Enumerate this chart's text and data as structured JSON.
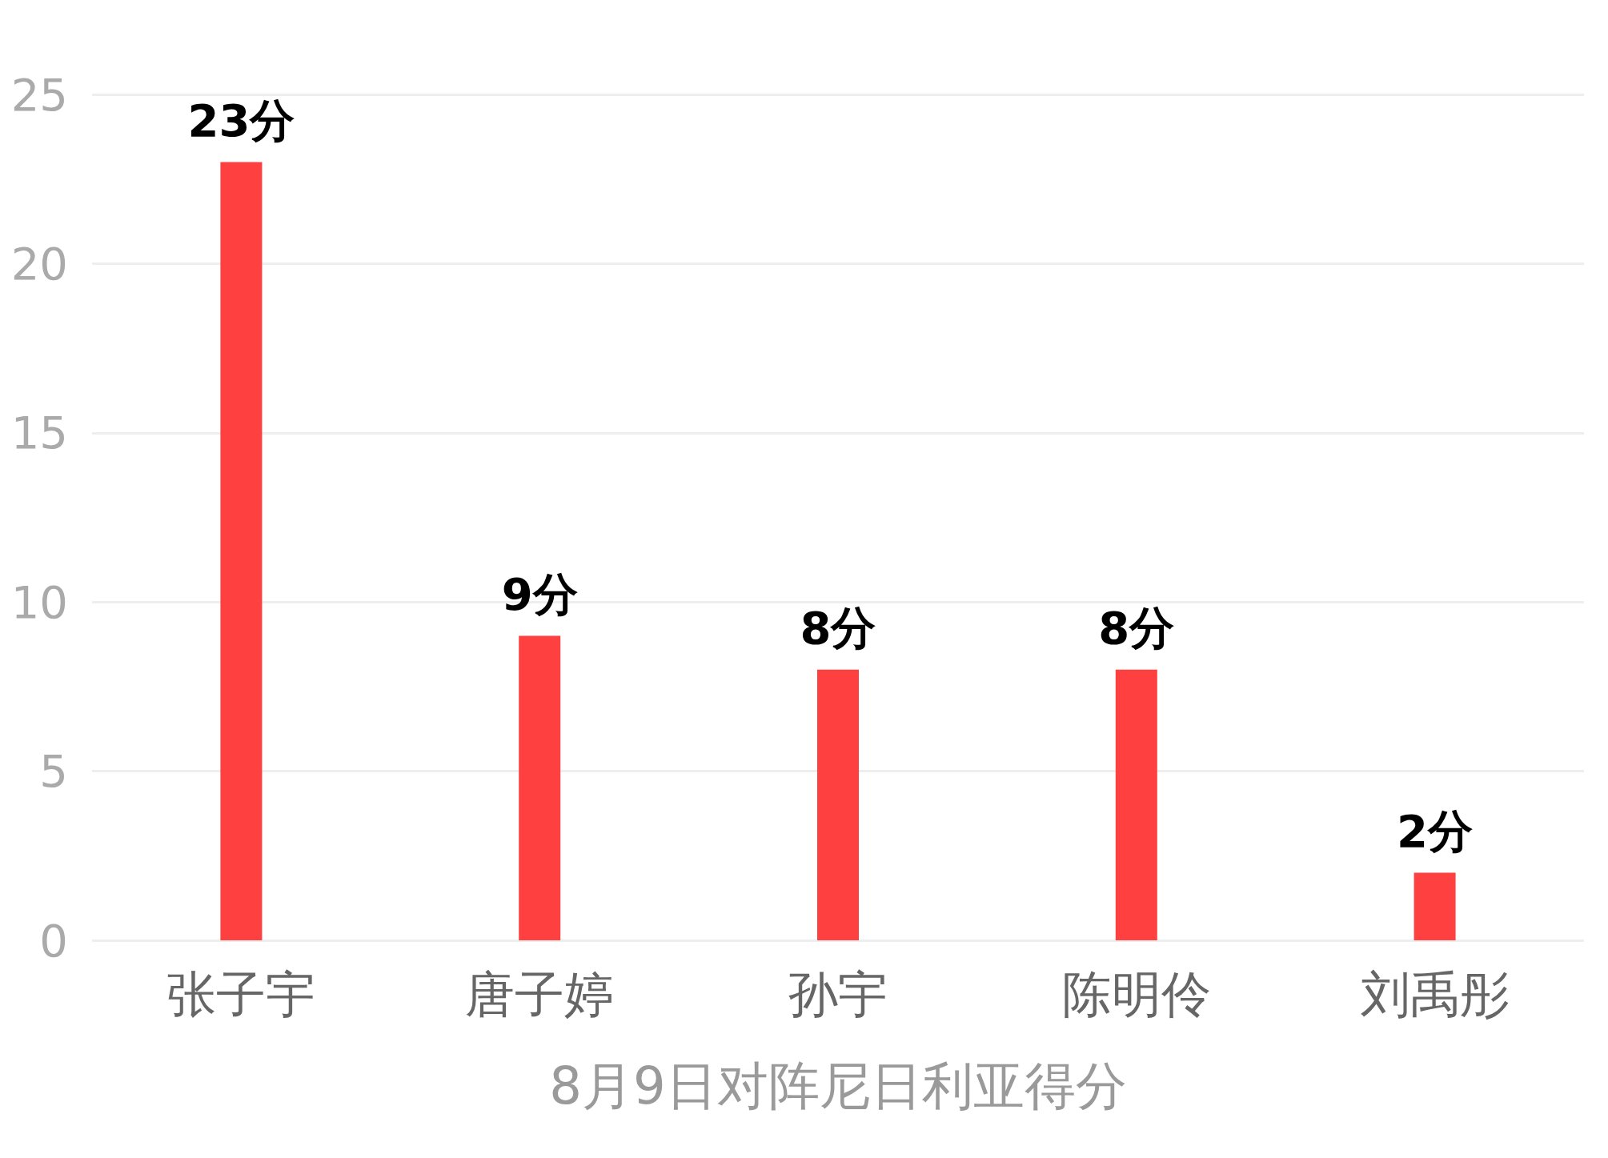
{
  "chart_data": {
    "type": "bar",
    "xlabel": "8月9日对阵尼日利亚得分",
    "categories": [
      "张子宇",
      "唐子婷",
      "孙宇",
      "陈明伶",
      "刘禹彤"
    ],
    "values": [
      23,
      9,
      8,
      8,
      2
    ],
    "value_labels": [
      "23分",
      "9分",
      "8分",
      "8分",
      "2分"
    ],
    "color": "#ff4040",
    "ylim": [
      0,
      25
    ],
    "yticks": [
      0,
      5,
      10,
      15,
      20,
      25
    ],
    "grid": "y"
  }
}
